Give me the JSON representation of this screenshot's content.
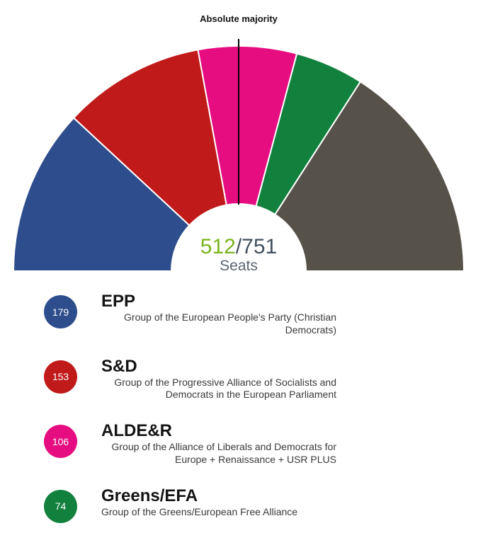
{
  "chart": {
    "annotation_label": "Absolute majority",
    "center_value": "512",
    "center_total": "/751",
    "center_caption": "Seats",
    "colors": {
      "center_value_green": "#7ab51e",
      "center_total_dark": "#42505e",
      "center_caption_gray": "#5a6572",
      "majority_line": "#000000"
    }
  },
  "chart_data": {
    "type": "hemicycle-donut",
    "title": "",
    "annotation": "Absolute majority",
    "total_seats": 751,
    "filled_seats": 512,
    "center_label": "512/751 Seats",
    "segments": [
      {
        "label": "EPP",
        "seats": 179,
        "color": "#2e4d8c"
      },
      {
        "label": "S&D",
        "seats": 153,
        "color": "#c01a1a"
      },
      {
        "label": "ALDE&R",
        "seats": 106,
        "color": "#e60d80"
      },
      {
        "label": "Greens/EFA",
        "seats": 74,
        "color": "#12813e"
      },
      {
        "label": "",
        "seats": 239,
        "color": "#575249"
      }
    ]
  },
  "legend": {
    "items": [
      {
        "value": "179",
        "title": "EPP",
        "description": "Group of the European People's Party (Christian Democrats)",
        "color": "#2e4d8c"
      },
      {
        "value": "153",
        "title": "S&D",
        "description": "Group of the Progressive Alliance of Socialists and Democrats in the European Parliament",
        "color": "#c01a1a"
      },
      {
        "value": "106",
        "title": "ALDE&R",
        "description": "Group of the Alliance of Liberals and Democrats for Europe + Renaissance + USR PLUS",
        "color": "#e60d80"
      },
      {
        "value": "74",
        "title": "Greens/EFA",
        "description": "Group of the Greens/European Free Alliance",
        "color": "#12813e"
      }
    ]
  }
}
